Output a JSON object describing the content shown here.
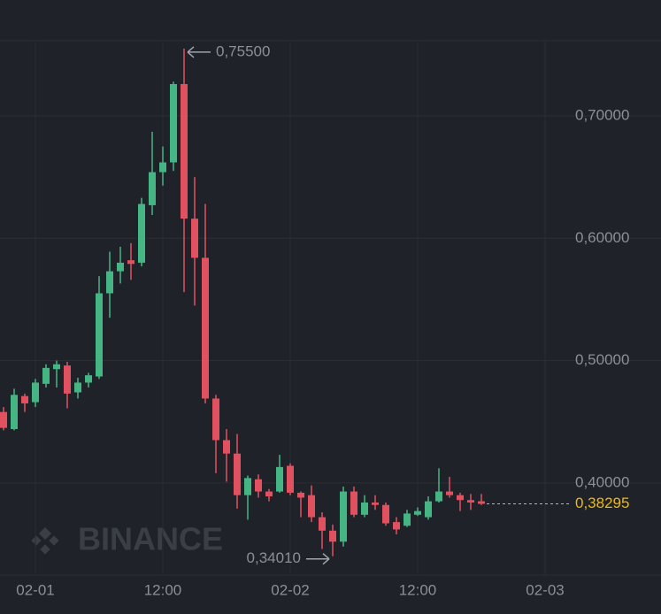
{
  "chart_data": {
    "type": "candlestick",
    "watermark": "BINANCE",
    "x": [
      -3,
      -2,
      -1,
      0,
      1,
      2,
      3,
      4,
      5,
      6,
      7,
      8,
      9,
      10,
      11,
      12,
      13,
      14,
      15,
      16,
      17,
      18,
      19,
      20,
      21,
      22,
      23,
      24,
      25,
      26,
      27,
      28,
      29,
      30,
      31,
      32,
      33,
      34,
      35,
      36,
      37,
      38,
      39,
      40,
      41,
      42
    ],
    "open": [
      0.458,
      0.444,
      0.471,
      0.466,
      0.481,
      0.493,
      0.496,
      0.474,
      0.482,
      0.487,
      0.555,
      0.573,
      0.582,
      0.58,
      0.627,
      0.654,
      0.662,
      0.726,
      0.616,
      0.584,
      0.469,
      0.435,
      0.424,
      0.39,
      0.403,
      0.393,
      0.393,
      0.414,
      0.392,
      0.39,
      0.372,
      0.361,
      0.352,
      0.393,
      0.374,
      0.384,
      0.382,
      0.368,
      0.365,
      0.374,
      0.372,
      0.385,
      0.393,
      0.39,
      0.386,
      0.385
    ],
    "high": [
      0.462,
      0.477,
      0.473,
      0.485,
      0.497,
      0.5,
      0.499,
      0.486,
      0.49,
      0.569,
      0.589,
      0.593,
      0.596,
      0.633,
      0.687,
      0.675,
      0.728,
      0.755,
      0.65,
      0.628,
      0.472,
      0.444,
      0.44,
      0.406,
      0.407,
      0.395,
      0.423,
      0.416,
      0.393,
      0.398,
      0.376,
      0.366,
      0.397,
      0.397,
      0.39,
      0.39,
      0.384,
      0.372,
      0.378,
      0.38,
      0.389,
      0.412,
      0.405,
      0.392,
      0.391,
      0.391
    ],
    "low": [
      0.443,
      0.443,
      0.458,
      0.462,
      0.478,
      0.478,
      0.461,
      0.469,
      0.478,
      0.485,
      0.535,
      0.563,
      0.566,
      0.577,
      0.619,
      0.643,
      0.655,
      0.556,
      0.545,
      0.465,
      0.408,
      0.401,
      0.379,
      0.37,
      0.388,
      0.385,
      0.392,
      0.39,
      0.372,
      0.368,
      0.346,
      0.3401,
      0.348,
      0.372,
      0.372,
      0.378,
      0.365,
      0.358,
      0.364,
      0.373,
      0.37,
      0.384,
      0.388,
      0.377,
      0.378,
      0.382
    ],
    "close": [
      0.445,
      0.472,
      0.465,
      0.482,
      0.494,
      0.497,
      0.473,
      0.482,
      0.488,
      0.555,
      0.573,
      0.58,
      0.579,
      0.628,
      0.654,
      0.662,
      0.726,
      0.616,
      0.584,
      0.469,
      0.435,
      0.424,
      0.39,
      0.404,
      0.393,
      0.389,
      0.413,
      0.392,
      0.388,
      0.372,
      0.361,
      0.352,
      0.393,
      0.374,
      0.384,
      0.382,
      0.367,
      0.362,
      0.375,
      0.377,
      0.385,
      0.393,
      0.39,
      0.386,
      0.384,
      0.38295
    ],
    "up_color": "#45b584",
    "down_color": "#e2515f",
    "xlim": [
      -3.3333,
      50
    ],
    "xticks": [
      {
        "value": 0,
        "label": "02-01"
      },
      {
        "value": 12,
        "label": "12:00"
      },
      {
        "value": 24,
        "label": "02-02"
      },
      {
        "value": 36,
        "label": "12:00"
      },
      {
        "value": 48,
        "label": "02-03"
      }
    ],
    "ylim": [
      0.3247,
      0.7947
    ],
    "yticks": [
      {
        "value": 0.4,
        "label": "0,40000"
      },
      {
        "value": 0.5,
        "label": "0,50000"
      },
      {
        "value": 0.6,
        "label": "0,60000"
      },
      {
        "value": 0.7,
        "label": "0,70000"
      }
    ],
    "high_annotation": {
      "value": 0.755,
      "label": "0,75500"
    },
    "low_annotation": {
      "value": 0.3401,
      "label": "0,34010"
    },
    "last_price": {
      "value": 0.38295,
      "label": "0,38295",
      "color": "#f0b90b"
    },
    "grid": true
  }
}
